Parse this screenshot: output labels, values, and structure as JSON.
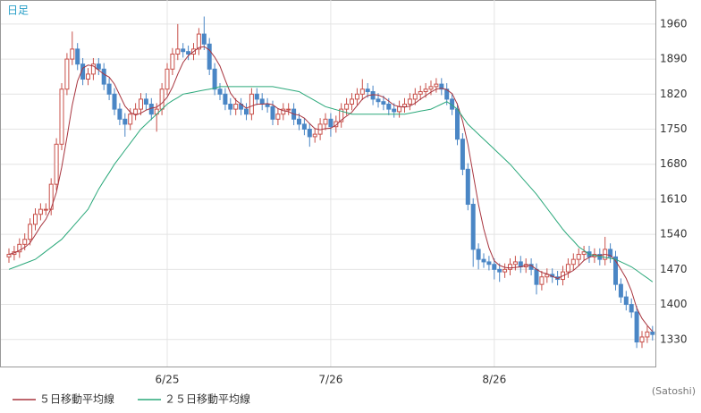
{
  "chart_data": {
    "type": "candlestick",
    "label": "日足",
    "credit": "(Satoshi)",
    "categories": [
      null,
      null,
      null,
      null,
      null,
      null,
      null,
      null,
      null,
      null,
      null,
      null,
      null,
      null,
      null,
      null,
      null,
      null,
      null,
      null,
      null,
      null,
      null,
      null,
      null,
      null,
      null,
      null,
      null,
      null,
      "6/25",
      null,
      null,
      null,
      null,
      null,
      null,
      null,
      null,
      null,
      null,
      null,
      null,
      null,
      null,
      null,
      null,
      null,
      null,
      null,
      null,
      null,
      null,
      null,
      null,
      null,
      null,
      null,
      null,
      null,
      null,
      "7/26",
      null,
      null,
      null,
      null,
      null,
      null,
      null,
      null,
      null,
      null,
      null,
      null,
      null,
      null,
      null,
      null,
      null,
      null,
      null,
      null,
      null,
      null,
      null,
      null,
      null,
      null,
      null,
      null,
      null,
      null,
      "8/26",
      null,
      null,
      null,
      null,
      null,
      null,
      null,
      null,
      null,
      null,
      null,
      null,
      null,
      null,
      null,
      null,
      null,
      null,
      null,
      null,
      null,
      null,
      null,
      null,
      null,
      null,
      null,
      null,
      null,
      null
    ],
    "open": [
      1495,
      1500,
      1505,
      1520,
      1530,
      1560,
      1580,
      1590,
      1590,
      1640,
      1720,
      1830,
      1890,
      1910,
      1880,
      1850,
      1860,
      1880,
      1870,
      1840,
      1820,
      1790,
      1770,
      1760,
      1780,
      1790,
      1810,
      1800,
      1780,
      1790,
      1830,
      1870,
      1900,
      1910,
      1905,
      1900,
      1910,
      1940,
      1920,
      1870,
      1830,
      1820,
      1800,
      1790,
      1800,
      1790,
      1780,
      1820,
      1810,
      1800,
      1795,
      1770,
      1780,
      1790,
      1790,
      1770,
      1760,
      1750,
      1735,
      1740,
      1760,
      1770,
      1755,
      1765,
      1790,
      1800,
      1810,
      1820,
      1830,
      1825,
      1810,
      1805,
      1800,
      1790,
      1785,
      1795,
      1800,
      1810,
      1820,
      1825,
      1830,
      1835,
      1840,
      1830,
      1810,
      1790,
      1730,
      1670,
      1600,
      1510,
      1490,
      1485,
      1480,
      1470,
      1465,
      1470,
      1480,
      1485,
      1475,
      1480,
      1470,
      1440,
      1455,
      1460,
      1455,
      1450,
      1465,
      1480,
      1490,
      1500,
      1505,
      1495,
      1500,
      1490,
      1510,
      1495,
      1440,
      1415,
      1400,
      1385,
      1325,
      1335,
      1345
    ],
    "high": [
      1512,
      1517,
      1532,
      1542,
      1572,
      1592,
      1602,
      1602,
      1652,
      1732,
      1842,
      1902,
      1945,
      1922,
      1892,
      1872,
      1892,
      1892,
      1882,
      1852,
      1832,
      1802,
      1782,
      1792,
      1802,
      1822,
      1822,
      1812,
      1802,
      1842,
      1882,
      1912,
      1960,
      1922,
      1917,
      1922,
      1952,
      1975,
      1932,
      1882,
      1842,
      1832,
      1812,
      1812,
      1812,
      1802,
      1832,
      1832,
      1822,
      1812,
      1807,
      1792,
      1802,
      1802,
      1802,
      1782,
      1772,
      1762,
      1752,
      1772,
      1782,
      1782,
      1777,
      1802,
      1812,
      1822,
      1832,
      1850,
      1842,
      1837,
      1822,
      1817,
      1812,
      1802,
      1807,
      1812,
      1822,
      1832,
      1837,
      1842,
      1847,
      1852,
      1852,
      1842,
      1822,
      1802,
      1742,
      1682,
      1612,
      1522,
      1502,
      1497,
      1492,
      1482,
      1482,
      1492,
      1497,
      1497,
      1492,
      1492,
      1482,
      1467,
      1472,
      1472,
      1467,
      1477,
      1492,
      1502,
      1512,
      1517,
      1517,
      1512,
      1512,
      1535,
      1522,
      1507,
      1452,
      1427,
      1412,
      1397,
      1347,
      1357,
      1357
    ],
    "low": [
      1483,
      1488,
      1493,
      1508,
      1518,
      1548,
      1568,
      1578,
      1578,
      1628,
      1708,
      1818,
      1878,
      1868,
      1838,
      1838,
      1848,
      1858,
      1828,
      1808,
      1778,
      1758,
      1735,
      1748,
      1768,
      1778,
      1788,
      1768,
      1745,
      1778,
      1818,
      1858,
      1888,
      1893,
      1888,
      1888,
      1898,
      1908,
      1858,
      1818,
      1808,
      1788,
      1778,
      1778,
      1778,
      1768,
      1768,
      1798,
      1788,
      1783,
      1758,
      1758,
      1768,
      1778,
      1758,
      1748,
      1738,
      1715,
      1723,
      1728,
      1748,
      1735,
      1743,
      1753,
      1778,
      1788,
      1798,
      1808,
      1813,
      1798,
      1793,
      1788,
      1778,
      1773,
      1773,
      1783,
      1788,
      1798,
      1808,
      1813,
      1818,
      1823,
      1818,
      1798,
      1778,
      1718,
      1658,
      1588,
      1475,
      1470,
      1473,
      1468,
      1450,
      1445,
      1453,
      1458,
      1468,
      1463,
      1463,
      1458,
      1420,
      1428,
      1443,
      1443,
      1438,
      1438,
      1453,
      1468,
      1478,
      1488,
      1483,
      1483,
      1478,
      1478,
      1483,
      1428,
      1403,
      1388,
      1373,
      1313,
      1313,
      1323,
      1328
    ],
    "close": [
      1500,
      1505,
      1520,
      1530,
      1560,
      1580,
      1590,
      1590,
      1640,
      1720,
      1830,
      1890,
      1910,
      1880,
      1850,
      1860,
      1880,
      1870,
      1840,
      1820,
      1790,
      1770,
      1760,
      1780,
      1790,
      1810,
      1800,
      1780,
      1790,
      1830,
      1870,
      1900,
      1910,
      1905,
      1900,
      1910,
      1940,
      1920,
      1870,
      1830,
      1820,
      1800,
      1790,
      1800,
      1790,
      1780,
      1820,
      1810,
      1800,
      1795,
      1770,
      1780,
      1790,
      1790,
      1770,
      1760,
      1750,
      1735,
      1740,
      1760,
      1770,
      1755,
      1765,
      1790,
      1800,
      1810,
      1820,
      1830,
      1825,
      1810,
      1805,
      1800,
      1790,
      1785,
      1795,
      1800,
      1810,
      1820,
      1825,
      1830,
      1835,
      1840,
      1830,
      1810,
      1790,
      1730,
      1670,
      1600,
      1510,
      1490,
      1485,
      1480,
      1470,
      1465,
      1470,
      1480,
      1485,
      1475,
      1480,
      1470,
      1440,
      1455,
      1460,
      1455,
      1450,
      1465,
      1480,
      1490,
      1500,
      1505,
      1495,
      1500,
      1490,
      1510,
      1495,
      1440,
      1415,
      1400,
      1385,
      1325,
      1335,
      1345,
      1340
    ],
    "up_color": "#c8504a",
    "down_color": "#4a86c5",
    "series": [
      {
        "name": "５日移動平均線",
        "color": "#a8353f",
        "values": [
          1500,
          1503,
          1508,
          1514,
          1523,
          1539,
          1556,
          1570,
          1592,
          1624,
          1674,
          1734,
          1798,
          1846,
          1872,
          1878,
          1876,
          1868,
          1860,
          1854,
          1840,
          1818,
          1796,
          1784,
          1778,
          1782,
          1788,
          1792,
          1794,
          1802,
          1814,
          1834,
          1860,
          1883,
          1897,
          1905,
          1913,
          1915,
          1908,
          1894,
          1876,
          1848,
          1822,
          1808,
          1800,
          1792,
          1796,
          1800,
          1800,
          1801,
          1799,
          1791,
          1787,
          1785,
          1780,
          1778,
          1772,
          1761,
          1751,
          1749,
          1751,
          1752,
          1758,
          1768,
          1776,
          1784,
          1797,
          1810,
          1817,
          1819,
          1818,
          1814,
          1806,
          1798,
          1795,
          1794,
          1796,
          1802,
          1810,
          1817,
          1824,
          1830,
          1832,
          1829,
          1821,
          1800,
          1766,
          1720,
          1660,
          1600,
          1551,
          1513,
          1487,
          1478,
          1474,
          1473,
          1474,
          1475,
          1478,
          1478,
          1470,
          1464,
          1461,
          1456,
          1452,
          1457,
          1462,
          1468,
          1477,
          1488,
          1494,
          1498,
          1498,
          1500,
          1498,
          1487,
          1470,
          1452,
          1427,
          1393,
          1372,
          1358,
          1346
        ]
      },
      {
        "name": "２５日移動平均線",
        "color": "#2aa87a",
        "values": [
          1470,
          1474,
          1478,
          1482,
          1486,
          1490,
          1498,
          1506,
          1514,
          1522,
          1530,
          1542,
          1554,
          1566,
          1578,
          1590,
          1610,
          1630,
          1647,
          1663,
          1680,
          1694,
          1708,
          1722,
          1736,
          1750,
          1760,
          1770,
          1780,
          1790,
          1800,
          1807,
          1813,
          1820,
          1822,
          1824,
          1826,
          1828,
          1830,
          1832,
          1835,
          1835,
          1835,
          1835,
          1835,
          1835,
          1835,
          1835,
          1835,
          1835,
          1835,
          1833,
          1831,
          1829,
          1827,
          1825,
          1819,
          1813,
          1807,
          1801,
          1795,
          1792,
          1789,
          1786,
          1783,
          1780,
          1780,
          1780,
          1780,
          1780,
          1780,
          1780,
          1780,
          1780,
          1780,
          1780,
          1782,
          1784,
          1786,
          1788,
          1790,
          1795,
          1800,
          1805,
          1798,
          1790,
          1775,
          1760,
          1750,
          1740,
          1730,
          1720,
          1710,
          1700,
          1690,
          1680,
          1668,
          1656,
          1644,
          1632,
          1620,
          1606,
          1592,
          1578,
          1564,
          1550,
          1538,
          1527,
          1515,
          1508,
          1500,
          1498,
          1496,
          1494,
          1492,
          1490,
          1485,
          1480,
          1475,
          1468,
          1460,
          1453,
          1445
        ]
      }
    ],
    "ylim": [
      1276,
      2008
    ],
    "yticks": [
      1330,
      1400,
      1470,
      1540,
      1610,
      1680,
      1750,
      1820,
      1890,
      1960
    ],
    "grid": true
  }
}
